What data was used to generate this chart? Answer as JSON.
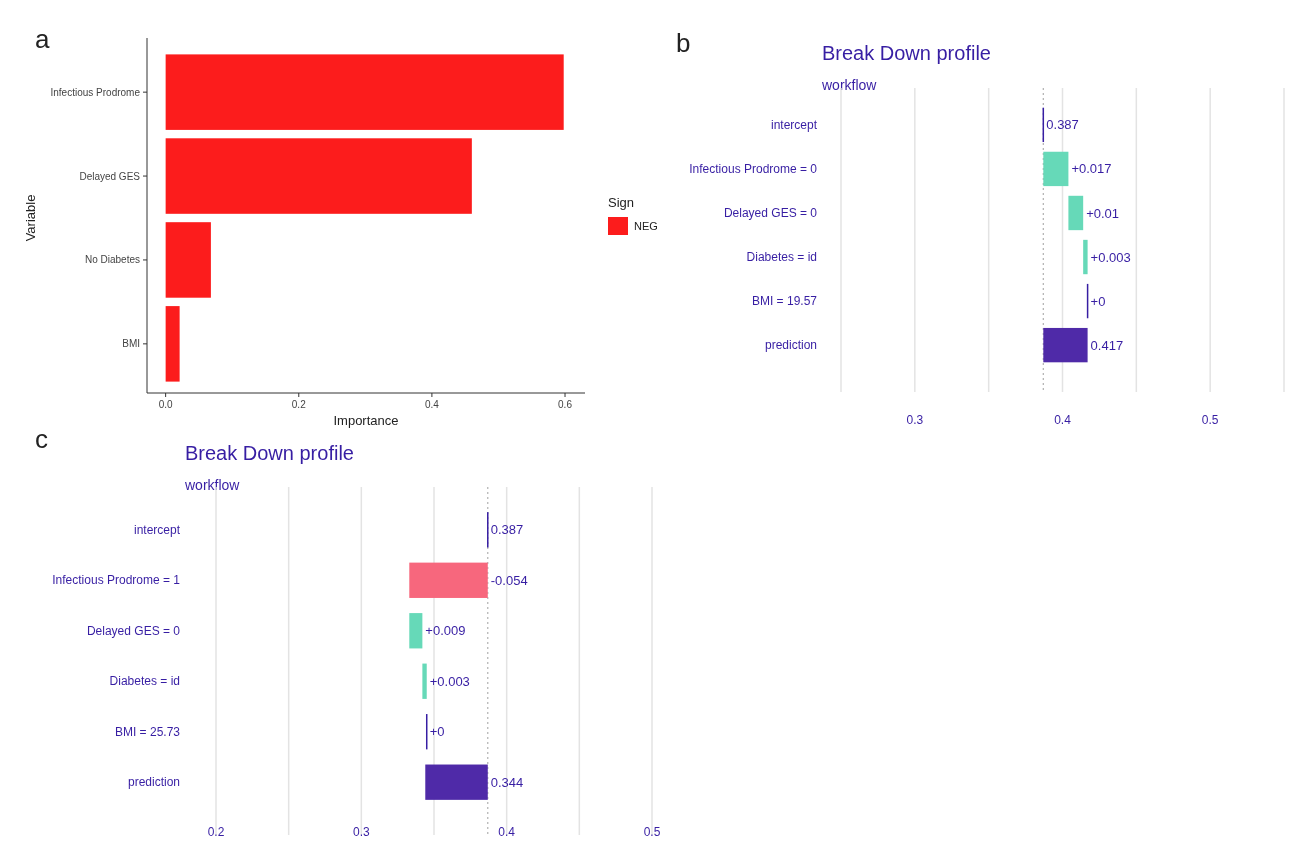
{
  "chart_data": [
    {
      "type": "bar",
      "orientation": "horizontal",
      "xlabel": "Importance",
      "ylabel": "Variable",
      "legend_title": "Sign",
      "legend": "right",
      "annotations": [
        "a"
      ],
      "categories": [
        "Infectious Prodrome",
        "Delayed GES",
        "No Diabetes",
        "BMI"
      ],
      "series": [
        {
          "name": "NEG",
          "color": "#fc1c1c",
          "values": [
            0.598,
            0.46,
            0.068,
            0.021
          ]
        }
      ],
      "xlim": [
        -0.028,
        0.63
      ],
      "xticks": [
        {
          "value": 0,
          "label": "0.0"
        },
        0.2,
        0.4,
        0.6
      ]
    },
    {
      "type": "bar",
      "orientation": "horizontal",
      "title": "Break Down profile",
      "subtitle": "workflow",
      "annotations": [
        "b"
      ],
      "categories": [
        "intercept",
        "Infectious Prodrome = 0",
        "Delayed GES = 0",
        "Diabetes = id",
        "BMI = 19.57",
        "prediction"
      ],
      "base": [
        0.387,
        0.387,
        0.404,
        0.414,
        0.417,
        0.387
      ],
      "values": [
        0,
        0.017,
        0.01,
        0.003,
        0,
        0.03
      ],
      "colors": [
        "#371ea3",
        "#66d9b8",
        "#66d9b8",
        "#66d9b8",
        "#371ea3",
        "#4f2aa8"
      ],
      "value_labels": [
        "0.387",
        "+0.017",
        "+0.01",
        "+0.003",
        "+0",
        "0.417"
      ],
      "ref_lines": [
        {
          "axis": "x",
          "value": 0.387,
          "line_style": "dotted",
          "color": "#b0b0b0"
        }
      ],
      "grid": "x",
      "xlim": [
        0.25,
        0.55
      ],
      "xticks": [
        {
          "value": 0.25,
          "label": null
        },
        0.3,
        {
          "value": 0.35,
          "label": null
        },
        0.4,
        {
          "value": 0.45,
          "label": null
        },
        0.5,
        {
          "value": 0.55,
          "label": null
        }
      ]
    },
    {
      "type": "bar",
      "orientation": "horizontal",
      "title": "Break Down profile",
      "subtitle": "workflow",
      "annotations": [
        "c"
      ],
      "categories": [
        "intercept",
        "Infectious Prodrome = 1",
        "Delayed GES = 0",
        "Diabetes = id",
        "BMI = 25.73",
        "prediction"
      ],
      "base": [
        0.387,
        0.387,
        0.333,
        0.342,
        0.345,
        0.387
      ],
      "values": [
        0,
        -0.054,
        0.009,
        0.003,
        0,
        -0.043
      ],
      "colors": [
        "#371ea3",
        "#f7677d",
        "#66d9b8",
        "#66d9b8",
        "#371ea3",
        "#4f2aa8"
      ],
      "value_labels": [
        "0.387",
        "-0.054",
        "+0.009",
        "+0.003",
        "+0",
        "0.344"
      ],
      "ref_lines": [
        {
          "axis": "x",
          "value": 0.387,
          "line_style": "dotted",
          "color": "#b0b0b0"
        }
      ],
      "grid": "x",
      "xlim": [
        0.2,
        0.5
      ],
      "xticks": [
        0.2,
        {
          "value": 0.25,
          "label": null
        },
        0.3,
        {
          "value": 0.35,
          "label": null
        },
        0.4,
        {
          "value": 0.45,
          "label": null
        },
        0.5
      ]
    }
  ]
}
